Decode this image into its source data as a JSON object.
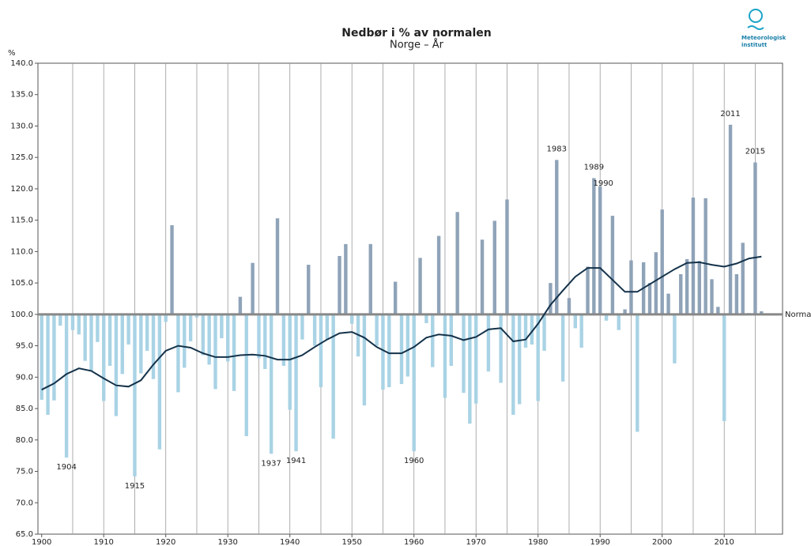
{
  "chart_data": {
    "type": "bar",
    "title": "Nedbør i % av normalen",
    "subtitle": "Norge – År",
    "y_unit": "%",
    "reference_label": "Normal",
    "reference": 100,
    "logo": "Meteorologisk institutt",
    "x": [
      1900,
      1901,
      1902,
      1903,
      1904,
      1905,
      1906,
      1907,
      1908,
      1909,
      1910,
      1911,
      1912,
      1913,
      1914,
      1915,
      1916,
      1917,
      1918,
      1919,
      1920,
      1921,
      1922,
      1923,
      1924,
      1925,
      1926,
      1927,
      1928,
      1929,
      1930,
      1931,
      1932,
      1933,
      1934,
      1935,
      1936,
      1937,
      1938,
      1939,
      1940,
      1941,
      1942,
      1943,
      1944,
      1945,
      1946,
      1947,
      1948,
      1949,
      1950,
      1951,
      1952,
      1953,
      1954,
      1955,
      1956,
      1957,
      1958,
      1959,
      1960,
      1961,
      1962,
      1963,
      1964,
      1965,
      1966,
      1967,
      1968,
      1969,
      1970,
      1971,
      1972,
      1973,
      1974,
      1975,
      1976,
      1977,
      1978,
      1979,
      1980,
      1981,
      1982,
      1983,
      1984,
      1985,
      1986,
      1987,
      1988,
      1989,
      1990,
      1991,
      1992,
      1993,
      1994,
      1995,
      1996,
      1997,
      1998,
      1999,
      2000,
      2001,
      2002,
      2003,
      2004,
      2005,
      2006,
      2007,
      2008,
      2009,
      2010,
      2011,
      2012,
      2013,
      2014,
      2015,
      2016
    ],
    "values": [
      86.4,
      84,
      86.3,
      98.2,
      77.2,
      97.5,
      96.8,
      92.6,
      91,
      95.6,
      86.2,
      91.8,
      83.8,
      90.5,
      95.2,
      74.2,
      90.6,
      94.2,
      89.7,
      78.5,
      98.8,
      114.2,
      87.6,
      91.5,
      95.7,
      99.5,
      93.5,
      92,
      88.1,
      96.2,
      92.5,
      87.8,
      102.8,
      80.6,
      108.2,
      93,
      91.3,
      77.8,
      115.3,
      91.8,
      84.8,
      78.2,
      96,
      107.9,
      95,
      88.4,
      96,
      80.2,
      109.3,
      111.2,
      98.5,
      93.3,
      85.5,
      111.2,
      95,
      88,
      88.4,
      105.2,
      88.9,
      90.1,
      78.2,
      109,
      98.6,
      91.6,
      112.5,
      86.7,
      91.8,
      116.3,
      87.5,
      82.6,
      85.8,
      111.9,
      90.9,
      114.9,
      89.1,
      118.3,
      84,
      85.7,
      94.7,
      95.2,
      86.2,
      94.2,
      105,
      124.6,
      89.3,
      102.6,
      97.8,
      94.7,
      107.6,
      121.7,
      120.4,
      99,
      115.7,
      97.5,
      100.8,
      108.6,
      81.3,
      108.3,
      105,
      109.9,
      116.7,
      103.3,
      92.2,
      106.4,
      108.8,
      118.6,
      108.5,
      118.5,
      105.6,
      101.2,
      83,
      130.2,
      106.4,
      111.4,
      100.2,
      124.2,
      100.5
    ],
    "above_color": "#8fa3b8",
    "below_color": "#a9d3e5",
    "trend": {
      "color": "#14324a",
      "x": [
        1900,
        1902,
        1904,
        1906,
        1908,
        1910,
        1912,
        1914,
        1916,
        1918,
        1920,
        1922,
        1924,
        1926,
        1928,
        1930,
        1932,
        1934,
        1936,
        1938,
        1940,
        1942,
        1944,
        1946,
        1948,
        1950,
        1952,
        1954,
        1956,
        1958,
        1960,
        1962,
        1964,
        1966,
        1968,
        1970,
        1972,
        1974,
        1976,
        1978,
        1980,
        1982,
        1984,
        1986,
        1988,
        1990,
        1992,
        1994,
        1996,
        1998,
        2000,
        2002,
        2004,
        2006,
        2008,
        2010,
        2012,
        2014,
        2016
      ],
      "values": [
        88,
        89,
        90.5,
        91.4,
        91,
        89.8,
        88.7,
        88.5,
        89.5,
        92,
        94.2,
        95,
        94.7,
        93.8,
        93.2,
        93.2,
        93.5,
        93.6,
        93.4,
        92.8,
        92.8,
        93.5,
        94.8,
        96,
        97,
        97.2,
        96.3,
        94.8,
        93.8,
        93.8,
        94.8,
        96.3,
        96.8,
        96.6,
        95.9,
        96.4,
        97.6,
        97.8,
        95.7,
        96,
        98.5,
        101.5,
        103.8,
        106,
        107.4,
        107.4,
        105.5,
        103.6,
        103.6,
        104.8,
        106,
        107.2,
        108.2,
        108.3,
        107.9,
        107.6,
        108.1,
        108.9,
        109.2
      ]
    },
    "annotations": [
      "1904",
      "1915",
      "1937",
      "1941",
      "1960",
      "1983",
      "1989",
      "1990",
      "2011",
      "2015"
    ],
    "xlim": [
      1899.4,
      2019.4
    ],
    "ylim": [
      65,
      140
    ],
    "xticks": [
      1900,
      1910,
      1920,
      1930,
      1940,
      1950,
      1960,
      1970,
      1980,
      1990,
      2000,
      2010
    ],
    "x_gridlines": [
      1905,
      1910,
      1915,
      1920,
      1925,
      1930,
      1935,
      1940,
      1945,
      1950,
      1955,
      1960,
      1965,
      1970,
      1975,
      1980,
      1985,
      1990,
      1995,
      2000,
      2005,
      2010,
      2015
    ],
    "yticks": [
      {
        "value": 65,
        "label": "65.0"
      },
      {
        "value": 70,
        "label": "70.0"
      },
      {
        "value": 75,
        "label": "75.0"
      },
      {
        "value": 80,
        "label": "80.0"
      },
      {
        "value": 85,
        "label": "85.0"
      },
      {
        "value": 90,
        "label": "90.0"
      },
      {
        "value": 95,
        "label": "95.0"
      },
      {
        "value": 100,
        "label": "100.0"
      },
      {
        "value": 105,
        "label": "105.0"
      },
      {
        "value": 110,
        "label": "110.0"
      },
      {
        "value": 115,
        "label": "115.0"
      },
      {
        "value": 120,
        "label": "120.0"
      },
      {
        "value": 125,
        "label": "125.0"
      },
      {
        "value": 130,
        "label": "130.0"
      },
      {
        "value": 135,
        "label": "135.0"
      },
      {
        "value": 140,
        "label": "140.0"
      }
    ]
  }
}
